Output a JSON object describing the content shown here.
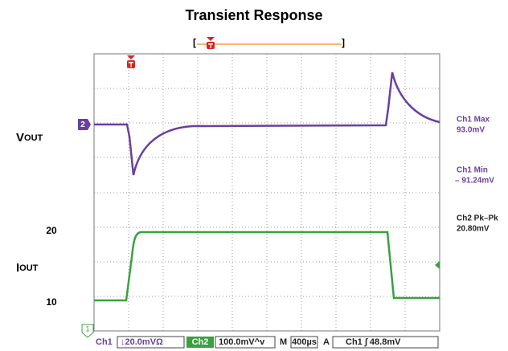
{
  "title": "Transient Response",
  "left_labels": {
    "vout": {
      "main": "V",
      "sub": "OUT"
    },
    "iout": {
      "main": "I",
      "sub": "OUT"
    },
    "level_high": "20",
    "level_low": "10"
  },
  "markers": {
    "ch2": "2",
    "ch1": "1"
  },
  "measurements": [
    {
      "name": "Ch1 Max",
      "value": "93.0mV"
    },
    {
      "name": "Ch1 Min",
      "value": "– 91.24mV"
    },
    {
      "name": "Ch2 Pk–Pk",
      "value": "20.80mV"
    }
  ],
  "status": {
    "ch1": "Ch1",
    "ch1_scale": "↓20.0mVΩ",
    "ch2": "Ch2",
    "ch2_scale": "100.0mV^v",
    "m": "M",
    "time": "400µs",
    "a": "A",
    "trigger": "Ch1 ∫ 48.8mV"
  }
}
